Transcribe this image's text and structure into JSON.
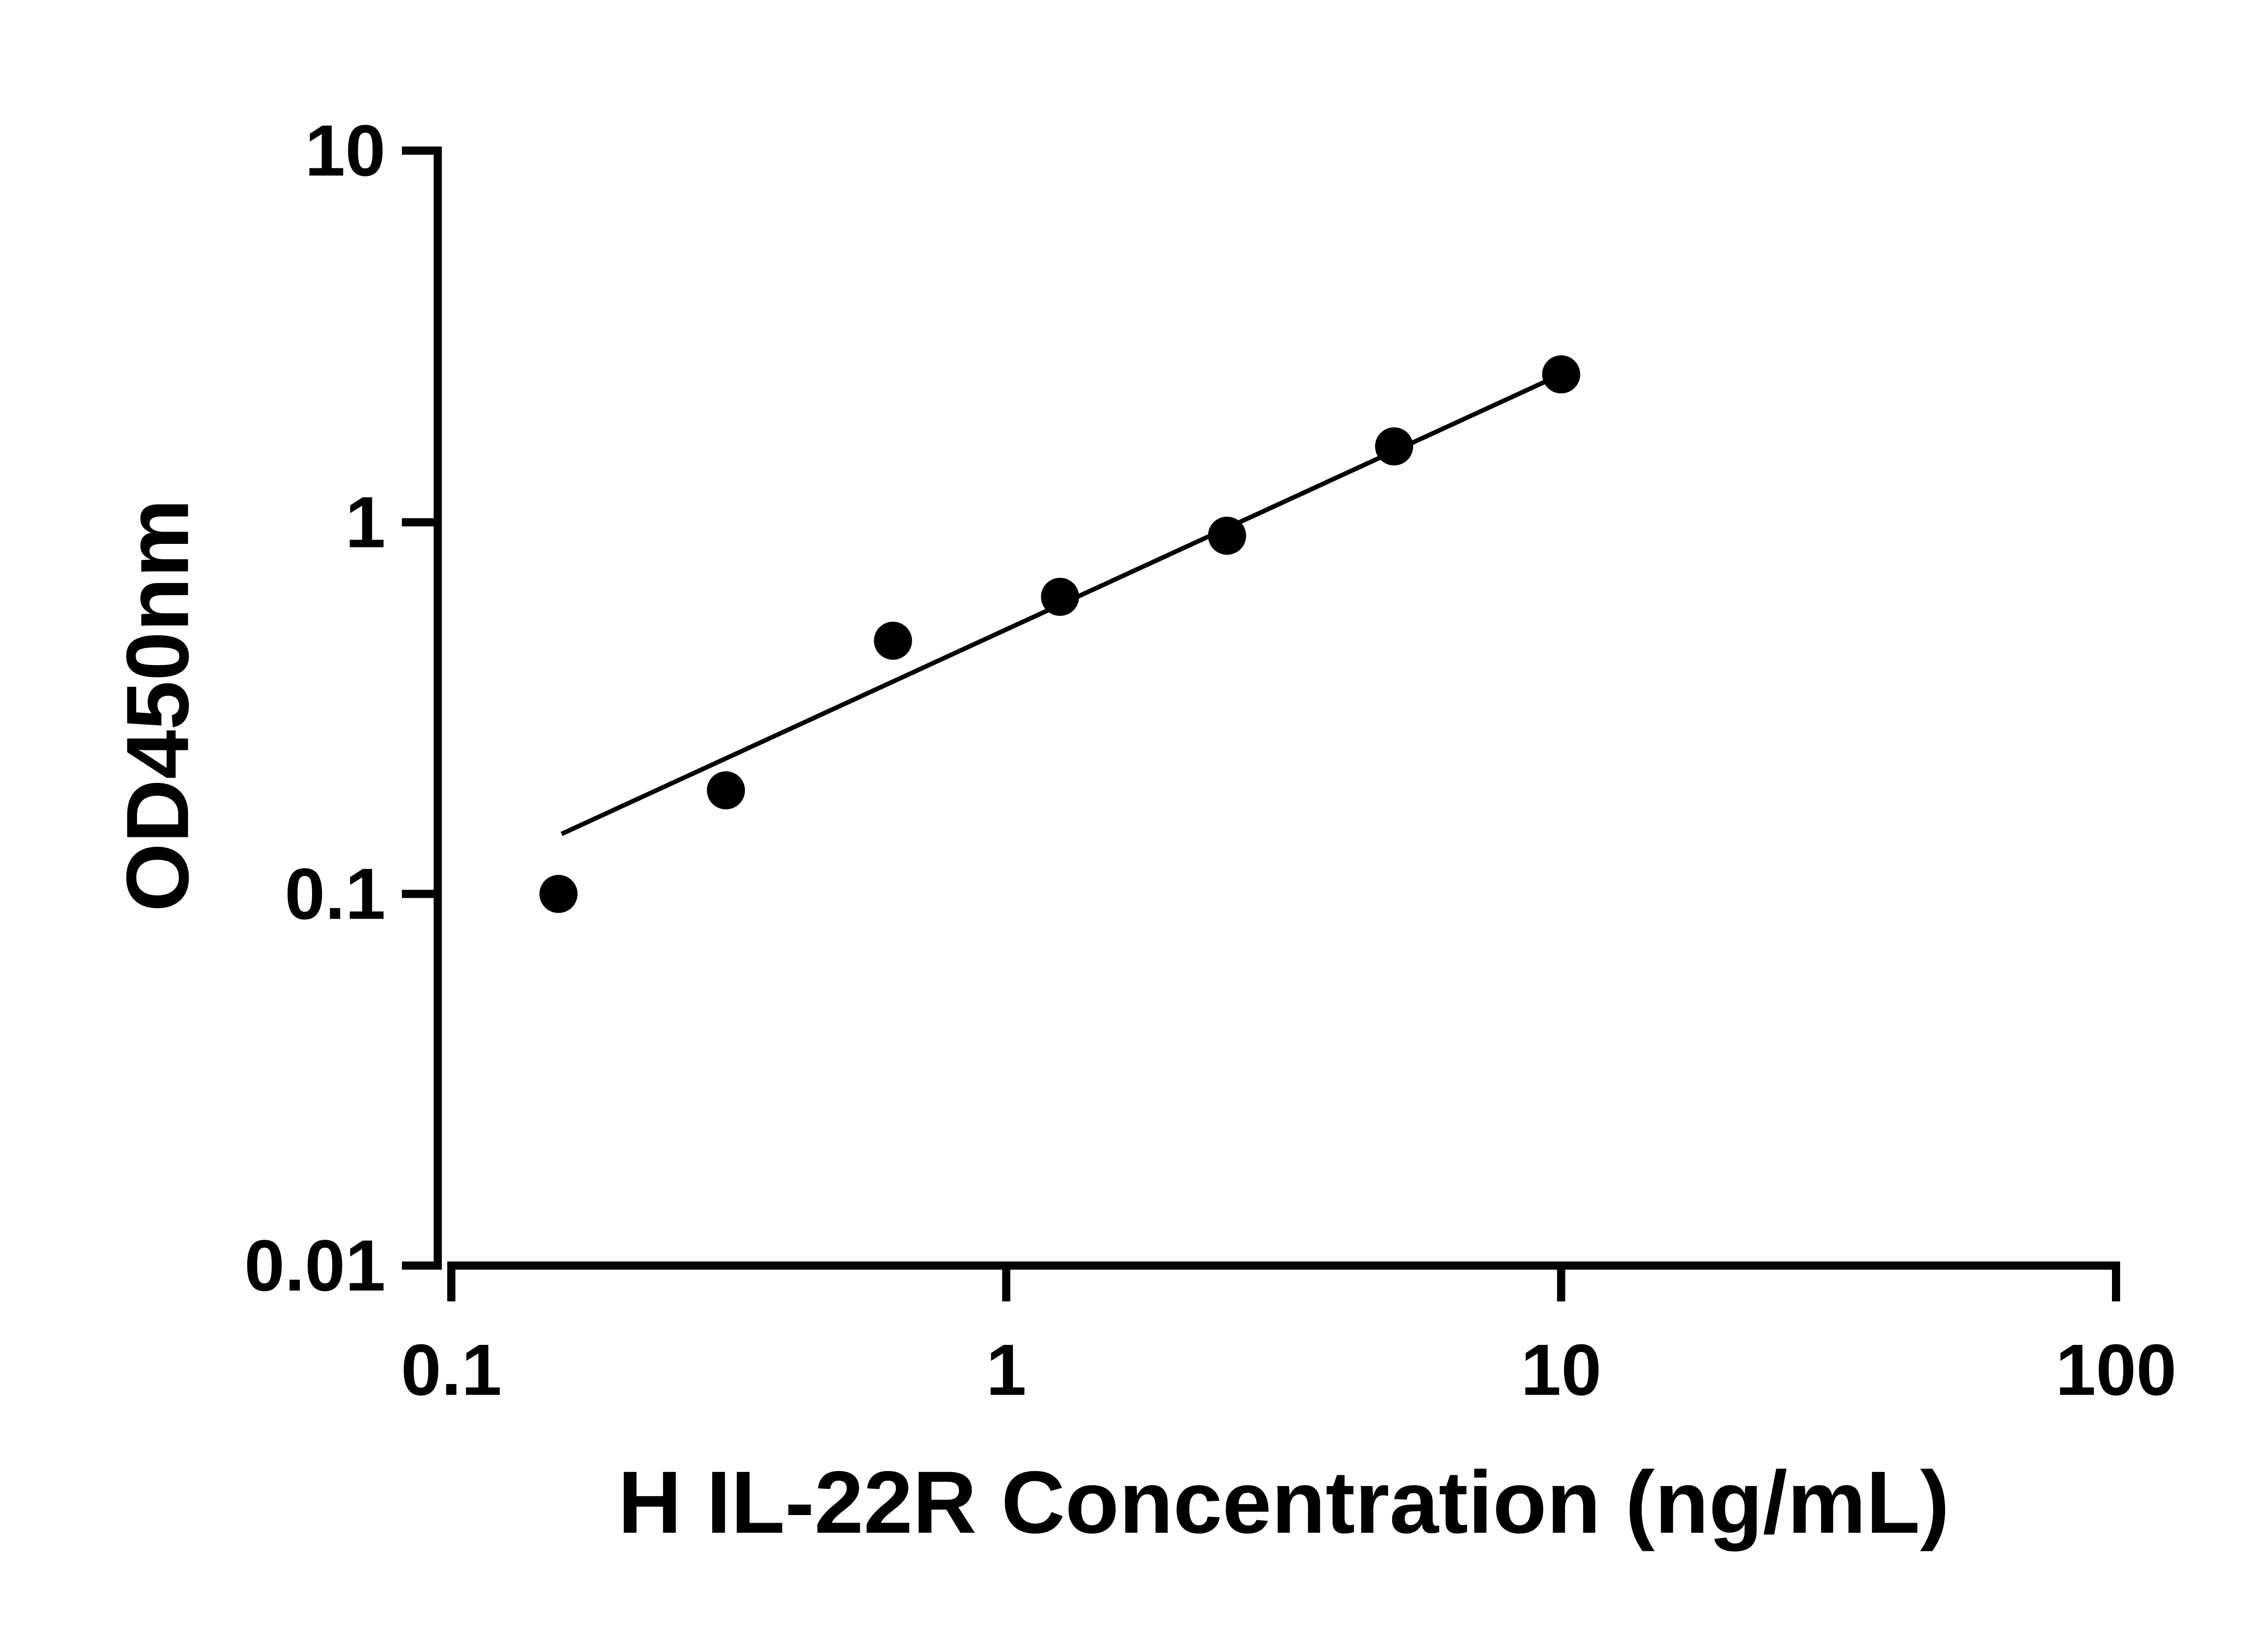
{
  "figure": {
    "background": "#ffffff"
  },
  "chart_data": {
    "type": "scatter",
    "title": "",
    "xlabel": "H IL-22R Concentration (ng/mL)",
    "ylabel": "OD450nm",
    "x_scale": "log10",
    "y_scale": "log10",
    "xlim": [
      0.1,
      100
    ],
    "ylim": [
      0.01,
      10
    ],
    "grid": false,
    "legend": null,
    "marker_color": "#000000",
    "line_color": "#000000",
    "axis_color": "#000000",
    "x_ticks": [
      {
        "value": 0.1,
        "label": "0.1"
      },
      {
        "value": 1,
        "label": "1"
      },
      {
        "value": 10,
        "label": "10"
      },
      {
        "value": 100,
        "label": "100"
      }
    ],
    "y_ticks": [
      {
        "value": 10,
        "label": "10"
      },
      {
        "value": 1,
        "label": "1"
      },
      {
        "value": 0.1,
        "label": "0.1"
      },
      {
        "value": 0.01,
        "label": "0.01"
      }
    ],
    "points": [
      {
        "x": 0.156,
        "y": 0.1
      },
      {
        "x": 0.3125,
        "y": 0.19
      },
      {
        "x": 0.625,
        "y": 0.48
      },
      {
        "x": 1.25,
        "y": 0.63
      },
      {
        "x": 2.5,
        "y": 0.92
      },
      {
        "x": 5,
        "y": 1.6
      },
      {
        "x": 10,
        "y": 2.5
      }
    ],
    "fit_line": {
      "x1": 0.158,
      "y1": 0.145,
      "x2": 10,
      "y2": 2.5
    }
  }
}
